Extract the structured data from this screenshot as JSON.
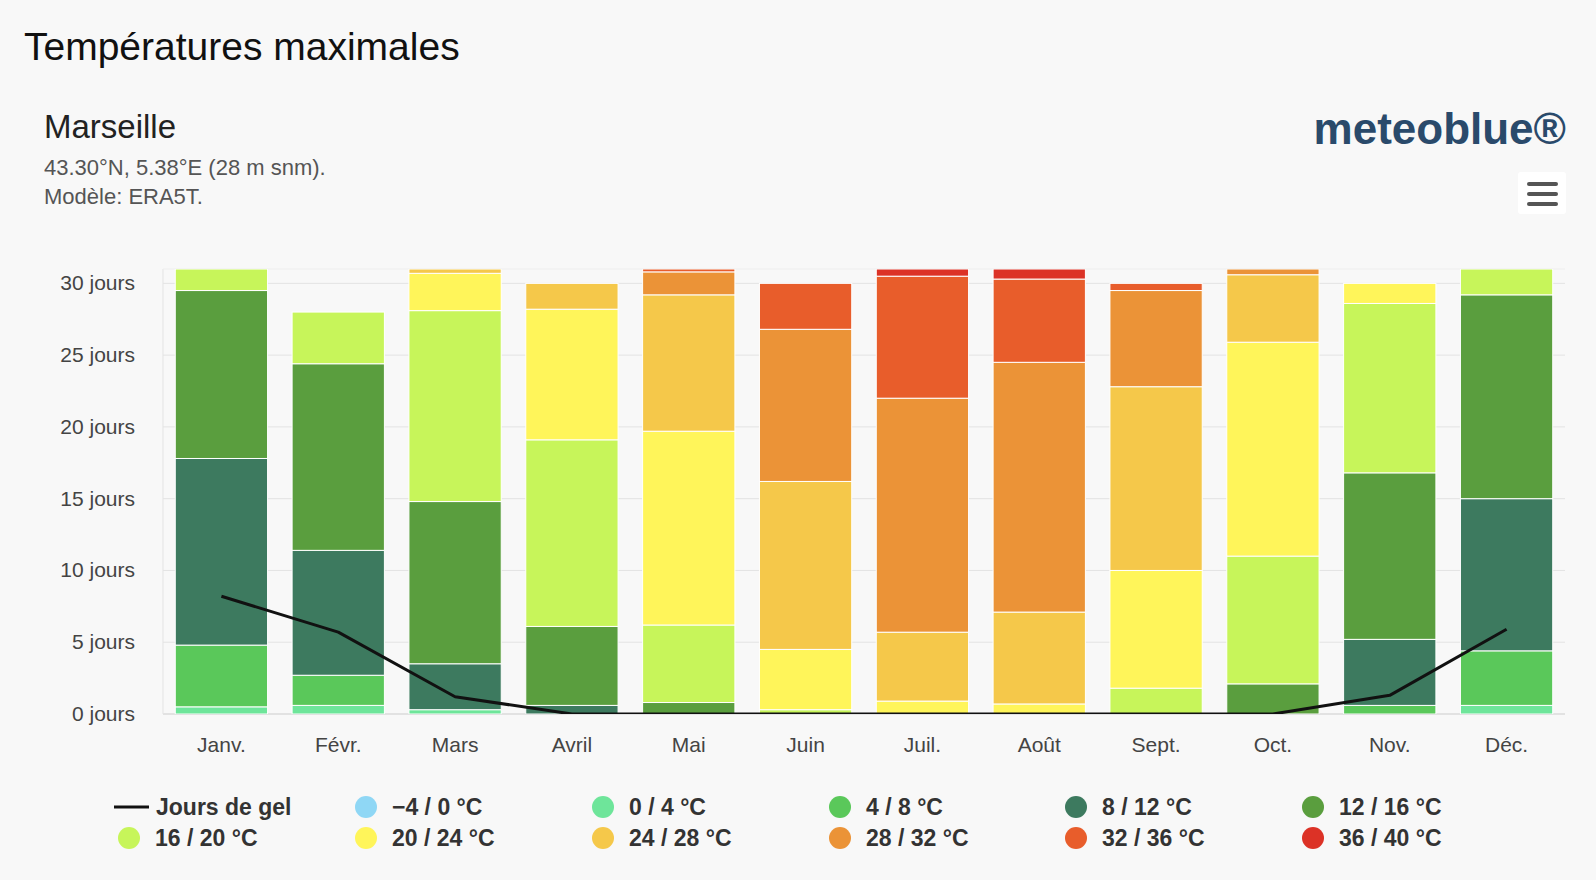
{
  "chart_data": {
    "type": "bar",
    "title": "Températures maximales",
    "subtitle": "Marseille",
    "annotations": [
      "43.30°N, 5.38°E (28 m snm).",
      "Modèle: ERA5T.",
      "meteoblue®"
    ],
    "categories": [
      "Janv.",
      "Févr.",
      "Mars",
      "Avril",
      "Mai",
      "Juin",
      "Juil.",
      "Août",
      "Sept.",
      "Oct.",
      "Nov.",
      "Déc."
    ],
    "stacked": true,
    "grid": true,
    "legend": "bottom",
    "ylim": [
      0,
      31
    ],
    "yticks": [
      {
        "value": 0,
        "label": "0 jours"
      },
      {
        "value": 5,
        "label": "5 jours"
      },
      {
        "value": 10,
        "label": "10 jours"
      },
      {
        "value": 15,
        "label": "15 jours"
      },
      {
        "value": 20,
        "label": "20 jours"
      },
      {
        "value": 25,
        "label": "25 jours"
      },
      {
        "value": 30,
        "label": "30 jours"
      }
    ],
    "series": [
      {
        "name": "Jours de gel",
        "type": "line",
        "color": "#111111",
        "values": [
          8.2,
          5.7,
          1.2,
          0,
          0,
          0,
          0,
          0,
          0,
          0,
          1.3,
          5.9
        ]
      },
      {
        "name": "−4 / 0 °C",
        "color": "#8fd7f5",
        "values": [
          0,
          0,
          0,
          0,
          0,
          0,
          0,
          0,
          0,
          0,
          0,
          0
        ]
      },
      {
        "name": "0 / 4 °C",
        "color": "#6ee59a",
        "values": [
          0.5,
          0.6,
          0.3,
          0,
          0,
          0,
          0,
          0,
          0,
          0,
          0,
          0.6
        ]
      },
      {
        "name": "4 / 8 °C",
        "color": "#5ac85a",
        "values": [
          4.3,
          2.1,
          0,
          0,
          0,
          0,
          0,
          0,
          0,
          0,
          0.6,
          3.8
        ]
      },
      {
        "name": "8 / 12 °C",
        "color": "#3d7a5f",
        "values": [
          13.0,
          8.7,
          3.2,
          0.6,
          0,
          0,
          0,
          0,
          0,
          0,
          4.6,
          10.6
        ]
      },
      {
        "name": "12 / 16 °C",
        "color": "#5a9e3e",
        "values": [
          11.7,
          13.0,
          11.3,
          5.5,
          0.8,
          0,
          0,
          0,
          0,
          2.1,
          11.6,
          14.2
        ]
      },
      {
        "name": "16 / 20 °C",
        "color": "#c7f55a",
        "values": [
          1.5,
          3.6,
          13.3,
          13.0,
          5.4,
          0.3,
          0,
          0,
          1.8,
          8.9,
          11.8,
          1.8
        ]
      },
      {
        "name": "20 / 24 °C",
        "color": "#fff55a",
        "values": [
          0,
          0,
          2.6,
          9.1,
          13.5,
          4.2,
          0.9,
          0.7,
          8.2,
          14.9,
          1.4,
          0
        ]
      },
      {
        "name": "24 / 28 °C",
        "color": "#f5c84a",
        "values": [
          0,
          0,
          0.3,
          1.8,
          9.5,
          11.7,
          4.8,
          6.4,
          12.8,
          4.7,
          0,
          0
        ]
      },
      {
        "name": "28 / 32 °C",
        "color": "#eb9337",
        "values": [
          0,
          0,
          0,
          0,
          1.6,
          10.6,
          16.3,
          17.4,
          6.7,
          0.4,
          0,
          0
        ]
      },
      {
        "name": "32 / 36 °C",
        "color": "#e85d2b",
        "values": [
          0,
          0,
          0,
          0,
          0.2,
          3.2,
          8.5,
          5.8,
          0.5,
          0,
          0,
          0
        ]
      },
      {
        "name": "36 / 40 °C",
        "color": "#dc3226",
        "values": [
          0,
          0,
          0,
          0,
          0,
          0,
          0.5,
          0.7,
          0,
          0,
          0,
          0
        ]
      }
    ]
  }
}
